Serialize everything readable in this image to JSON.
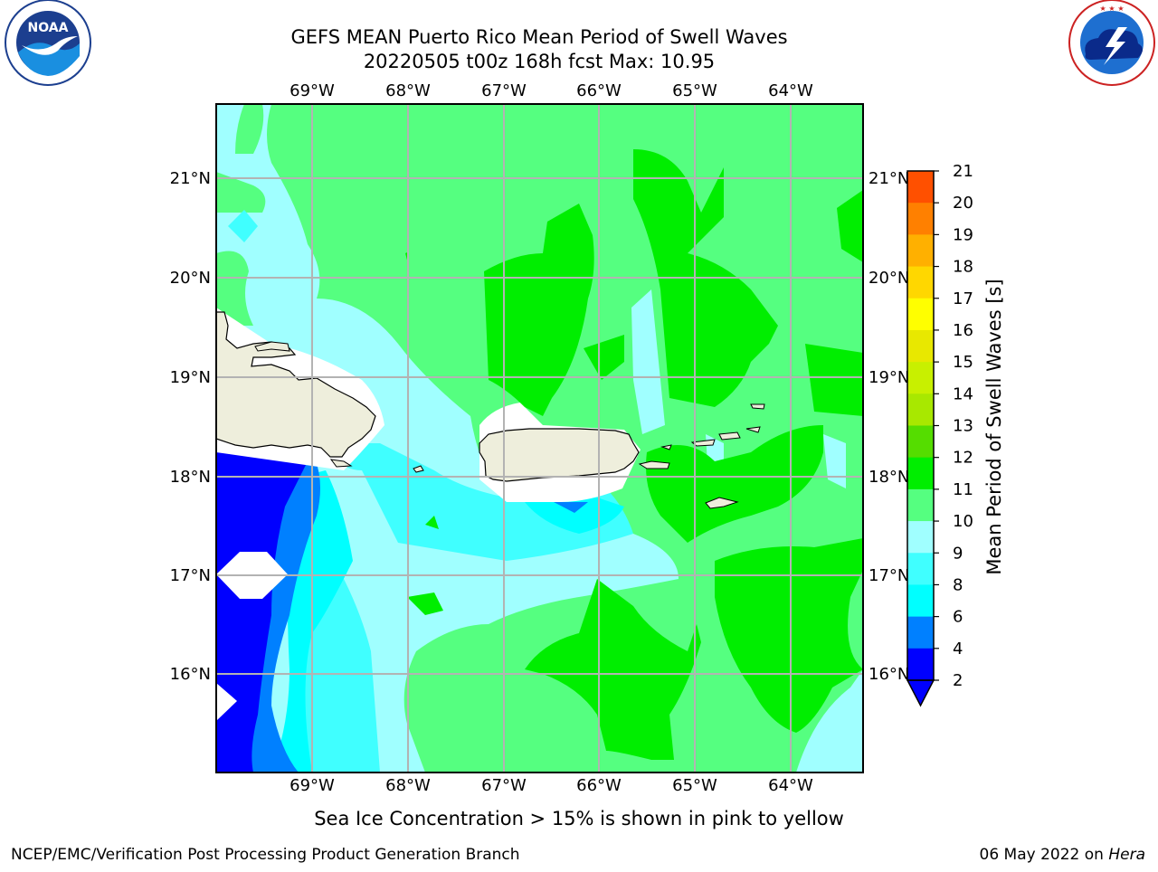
{
  "title": {
    "line1": "GEFS MEAN Puerto Rico Mean Period of Swell Waves",
    "line2": "20220505 t00z 168h fcst   Max: 10.95"
  },
  "logos": {
    "noaa": "NOAA",
    "noaa_ring": "NATIONAL OCEANIC AND ATMOSPHERIC ADMINISTRATION · U.S. DEPARTMENT OF COMMERCE",
    "nws_ring": "NATIONAL WEATHER SERVICE"
  },
  "map": {
    "lon_labels": [
      "69°W",
      "68°W",
      "67°W",
      "66°W",
      "65°W",
      "64°W"
    ],
    "lat_labels": [
      "21°N",
      "20°N",
      "19°N",
      "18°N",
      "17°N",
      "16°N"
    ],
    "colors": {
      "land": "#eeeedc",
      "coast": "#000000",
      "grid": "#b3b3b3"
    }
  },
  "colorbar": {
    "label": "Mean Period of Swell Waves [s]",
    "ticks": [
      "2",
      "4",
      "6",
      "8",
      "9",
      "10",
      "11",
      "12",
      "13",
      "14",
      "15",
      "16",
      "17",
      "18",
      "19",
      "20",
      "21"
    ],
    "colors": [
      "#0000ff",
      "#0080ff",
      "#00ffff",
      "#40ffff",
      "#a0ffff",
      "#55ff80",
      "#00ee00",
      "#55dd00",
      "#a8e800",
      "#c8f000",
      "#e8e800",
      "#ffff00",
      "#ffd700",
      "#ffb000",
      "#ff8000",
      "#ff5000",
      "#ff2000",
      "#ff0000"
    ],
    "under_color": "#0000ff"
  },
  "footer": {
    "note": "Sea Ice Concentration > 15% is shown in pink to yellow",
    "credit": "NCEP/EMC/Verification Post Processing Product Generation Branch",
    "date_prefix": "06 May 2022 on ",
    "date_machine": "Hera"
  }
}
